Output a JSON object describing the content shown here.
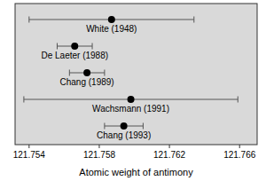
{
  "chart_data": {
    "type": "errorbar",
    "orientation": "horizontal",
    "x_label": "Atomic weight of antimony",
    "categories": [
      "White (1948)",
      "De Laeter (1988)",
      "Chang (1989)",
      "Wachsmann (1991)",
      "Chang (1993)"
    ],
    "values": [
      121.7587,
      121.7566,
      121.7573,
      121.7598,
      121.7594
    ],
    "errors": [
      0.0047,
      0.001,
      0.001,
      0.0061,
      0.0011
    ],
    "color": "#000000",
    "xlim": [
      121.7532,
      121.767
    ],
    "xticks": [
      121.754,
      121.758,
      121.762,
      121.766
    ],
    "grid": false
  }
}
